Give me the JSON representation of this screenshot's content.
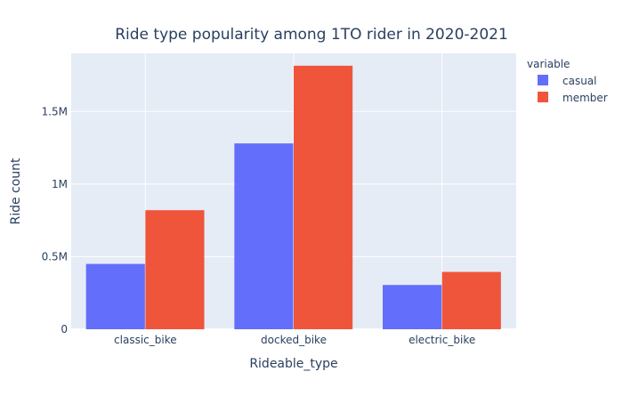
{
  "chart_data": {
    "type": "bar",
    "title": "Ride type popularity among 1TO rider in 2020-2021",
    "xlabel": "Rideable_type",
    "ylabel": "Ride count",
    "categories": [
      "classic_bike",
      "docked_bike",
      "electric_bike"
    ],
    "series": [
      {
        "name": "casual",
        "values": [
          450000,
          1280000,
          305000
        ],
        "color": "#636efa"
      },
      {
        "name": "member",
        "values": [
          820000,
          1815000,
          395000
        ],
        "color": "#ef553b"
      }
    ],
    "ylim": [
      0,
      1900000
    ],
    "y_ticks": [
      {
        "value": 0,
        "label": "0"
      },
      {
        "value": 500000,
        "label": "0.5M"
      },
      {
        "value": 1000000,
        "label": "1M"
      },
      {
        "value": 1500000,
        "label": "1.5M"
      }
    ],
    "grid": true,
    "plot_background": "#e5ecf6",
    "legend": {
      "title": "variable",
      "placement": "top-right"
    }
  }
}
